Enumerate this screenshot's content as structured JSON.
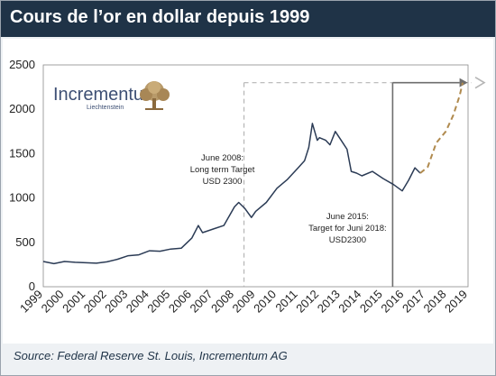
{
  "header": {
    "title": "Cours de l’or en dollar depuis 1999"
  },
  "logo": {
    "name": "Incrementum",
    "subtitle": "Liechtenstein",
    "icon": "tree-icon"
  },
  "source": "Source: Federal Reserve St. Louis, Incrementum AG",
  "colors": {
    "price_line": "#2b3b55",
    "forecast": "#b08a4e",
    "dashed_box": "#b5b5b5",
    "target_arrow": "#6e6e6e",
    "header_bg": "#1f3347"
  },
  "chart_data": {
    "type": "line",
    "x_ticks": [
      "1999",
      "2000",
      "2001",
      "2002",
      "2003",
      "2004",
      "2005",
      "2006",
      "2007",
      "2008",
      "2009",
      "2010",
      "2011",
      "2012",
      "2013",
      "2014",
      "2015",
      "2016",
      "2017",
      "2018",
      "2019"
    ],
    "y_ticks": [
      "0",
      "500",
      "1000",
      "1500",
      "2000",
      "2500"
    ],
    "xlim": [
      1999,
      2019
    ],
    "ylim": [
      0,
      2500
    ],
    "grid": false,
    "series": [
      {
        "style": "solid",
        "x": [
          1999.0,
          1999.5,
          2000.0,
          2000.5,
          2001.0,
          2001.5,
          2002.0,
          2002.5,
          2003.0,
          2003.5,
          2004.0,
          2004.5,
          2005.0,
          2005.5,
          2006.0,
          2006.3,
          2006.5,
          2007.0,
          2007.5,
          2008.0,
          2008.2,
          2008.5,
          2008.8,
          2009.0,
          2009.5,
          2010.0,
          2010.5,
          2011.0,
          2011.3,
          2011.5,
          2011.67,
          2011.9,
          2012.0,
          2012.3,
          2012.5,
          2012.75,
          2013.0,
          2013.3,
          2013.5,
          2013.75,
          2014.0,
          2014.5,
          2015.0,
          2015.5,
          2015.9,
          2016.2,
          2016.5,
          2016.75
        ],
        "y": [
          285,
          260,
          285,
          275,
          270,
          265,
          280,
          310,
          350,
          360,
          405,
          400,
          425,
          435,
          550,
          690,
          610,
          650,
          690,
          900,
          950,
          880,
          780,
          850,
          950,
          1110,
          1210,
          1340,
          1420,
          1570,
          1840,
          1650,
          1680,
          1650,
          1600,
          1750,
          1660,
          1550,
          1300,
          1280,
          1250,
          1300,
          1220,
          1150,
          1080,
          1200,
          1340,
          1280
        ]
      },
      {
        "style": "dashed",
        "x": [
          2016.75,
          2017.1,
          2017.5,
          2017.95,
          2018.3,
          2018.6,
          2018.75
        ],
        "y": [
          1280,
          1350,
          1620,
          1750,
          1930,
          2150,
          2300
        ]
      }
    ],
    "annotations": [
      {
        "text_lines": [
          "June 2008:",
          "Long term Target",
          "USD 2300"
        ],
        "x": 2008.45
      },
      {
        "text_lines": [
          "June 2015:",
          "Target for Juni 2018:",
          "USD2300"
        ],
        "x": 2015.45
      }
    ],
    "target_level": 2300
  }
}
